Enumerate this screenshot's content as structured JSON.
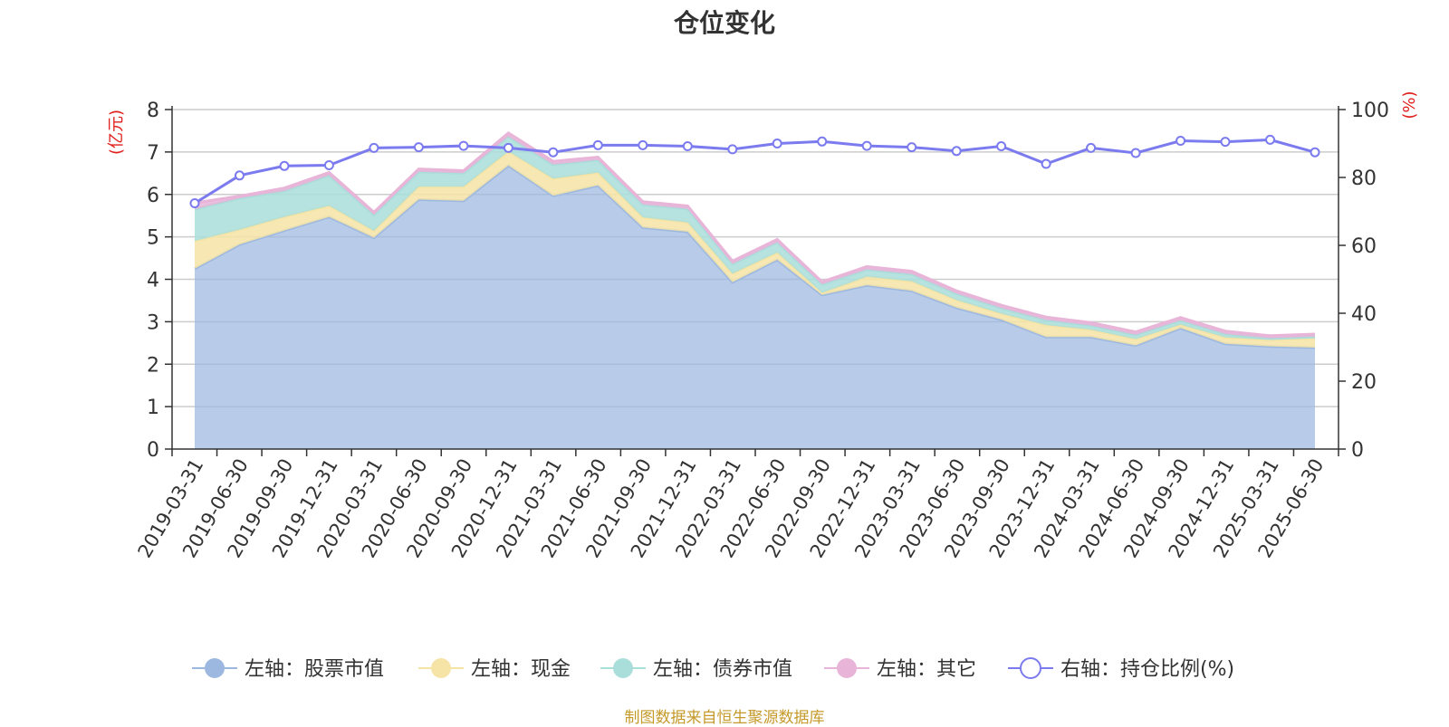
{
  "title": "仓位变化",
  "source": "制图数据来自恒生聚源数据库",
  "colors": {
    "stock": "#9db8e0",
    "stock_line": "#9db8e0",
    "cash": "#f6e4a6",
    "bond": "#a9dedb",
    "other": "#e8b4d8",
    "ratio": "#7b7bef",
    "axis_unit": "#e0201d",
    "grid": "#cccccc",
    "text": "#333333"
  },
  "chart_data": {
    "type": "area",
    "title": "仓位变化",
    "y_left_label": "(亿元)",
    "y_right_label": "(%)",
    "y_left_range": [
      0,
      8
    ],
    "y_left_ticks": [
      0,
      1,
      2,
      3,
      4,
      5,
      6,
      7,
      8
    ],
    "y_right_range": [
      0,
      100
    ],
    "y_right_ticks": [
      0,
      20,
      40,
      60,
      80,
      100
    ],
    "grid": true,
    "legend_position": "bottom",
    "stacked": true,
    "categories": [
      "2019-03-31",
      "2019-06-30",
      "2019-09-30",
      "2019-12-31",
      "2020-03-31",
      "2020-06-30",
      "2020-09-30",
      "2020-12-31",
      "2021-03-31",
      "2021-06-30",
      "2021-09-30",
      "2021-12-31",
      "2022-03-31",
      "2022-06-30",
      "2022-09-30",
      "2022-12-31",
      "2023-03-31",
      "2023-06-30",
      "2023-09-30",
      "2023-12-31",
      "2024-03-31",
      "2024-06-30",
      "2024-09-30",
      "2024-12-31",
      "2025-03-31",
      "2025-06-30"
    ],
    "series": [
      {
        "name": "左轴：股票市值",
        "axis": "left",
        "key": "stock",
        "values": [
          4.25,
          4.82,
          5.15,
          5.47,
          4.98,
          5.88,
          5.85,
          6.68,
          5.97,
          6.21,
          5.22,
          5.12,
          3.93,
          4.46,
          3.63,
          3.86,
          3.73,
          3.33,
          3.05,
          2.64,
          2.64,
          2.44,
          2.85,
          2.48,
          2.42,
          2.39
        ]
      },
      {
        "name": "左轴：现金",
        "axis": "left",
        "key": "cash",
        "values": [
          0.65,
          0.35,
          0.32,
          0.26,
          0.16,
          0.3,
          0.33,
          0.33,
          0.4,
          0.3,
          0.24,
          0.22,
          0.2,
          0.17,
          0.05,
          0.2,
          0.22,
          0.18,
          0.14,
          0.28,
          0.17,
          0.15,
          0.08,
          0.15,
          0.15,
          0.22
        ]
      },
      {
        "name": "左轴：债券市值",
        "axis": "left",
        "key": "bond",
        "values": [
          0.75,
          0.74,
          0.61,
          0.72,
          0.38,
          0.35,
          0.32,
          0.35,
          0.33,
          0.3,
          0.3,
          0.32,
          0.23,
          0.24,
          0.2,
          0.17,
          0.17,
          0.15,
          0.13,
          0.12,
          0.1,
          0.1,
          0.1,
          0.08,
          0.04,
          0.04
        ]
      },
      {
        "name": "左轴：其它",
        "axis": "left",
        "key": "other",
        "values": [
          0.15,
          0.05,
          0.07,
          0.07,
          0.06,
          0.07,
          0.06,
          0.09,
          0.08,
          0.07,
          0.07,
          0.07,
          0.07,
          0.07,
          0.06,
          0.07,
          0.07,
          0.07,
          0.07,
          0.07,
          0.07,
          0.07,
          0.07,
          0.07,
          0.06,
          0.06
        ]
      },
      {
        "name": "右轴：持仓比例(%)",
        "axis": "right",
        "key": "ratio",
        "type": "line",
        "values": [
          72.4,
          80.6,
          83.4,
          83.6,
          88.7,
          88.9,
          89.3,
          88.7,
          87.4,
          89.5,
          89.5,
          89.2,
          88.3,
          90.0,
          90.6,
          89.3,
          88.9,
          87.8,
          89.2,
          84.0,
          88.7,
          87.2,
          90.8,
          90.5,
          91.1,
          87.4
        ]
      }
    ]
  }
}
